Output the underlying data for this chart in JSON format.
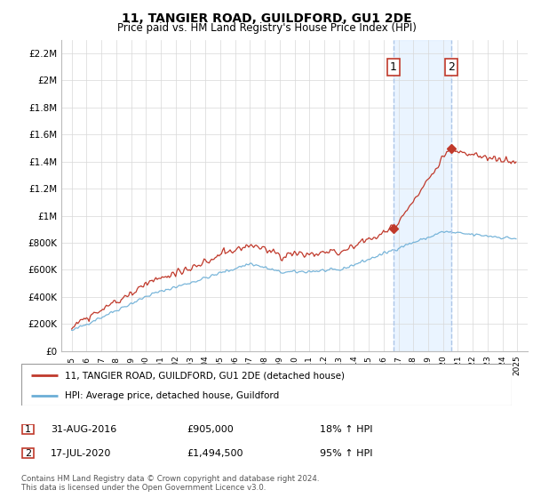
{
  "title": "11, TANGIER ROAD, GUILDFORD, GU1 2DE",
  "subtitle": "Price paid vs. HM Land Registry's House Price Index (HPI)",
  "ylabel_ticks": [
    "£0",
    "£200K",
    "£400K",
    "£600K",
    "£800K",
    "£1M",
    "£1.2M",
    "£1.4M",
    "£1.6M",
    "£1.8M",
    "£2M",
    "£2.2M"
  ],
  "ylabel_values": [
    0,
    200000,
    400000,
    600000,
    800000,
    1000000,
    1200000,
    1400000,
    1600000,
    1800000,
    2000000,
    2200000
  ],
  "ylim": [
    0,
    2300000
  ],
  "x_start_year": 1995,
  "x_end_year": 2025,
  "hpi_color": "#6baed6",
  "price_color": "#c0392b",
  "dashed_color": "#aec6e8",
  "shade_color": "#ddeeff",
  "point1_year": 2016.67,
  "point1_value": 905000,
  "point2_year": 2020.54,
  "point2_value": 1494500,
  "legend_label1": "11, TANGIER ROAD, GUILDFORD, GU1 2DE (detached house)",
  "legend_label2": "HPI: Average price, detached house, Guildford",
  "table_row1_date": "31-AUG-2016",
  "table_row1_price": "£905,000",
  "table_row1_hpi": "18% ↑ HPI",
  "table_row2_date": "17-JUL-2020",
  "table_row2_price": "£1,494,500",
  "table_row2_hpi": "95% ↑ HPI",
  "footnote": "Contains HM Land Registry data © Crown copyright and database right 2024.\nThis data is licensed under the Open Government Licence v3.0.",
  "background_color": "#ffffff",
  "grid_color": "#d8d8d8"
}
